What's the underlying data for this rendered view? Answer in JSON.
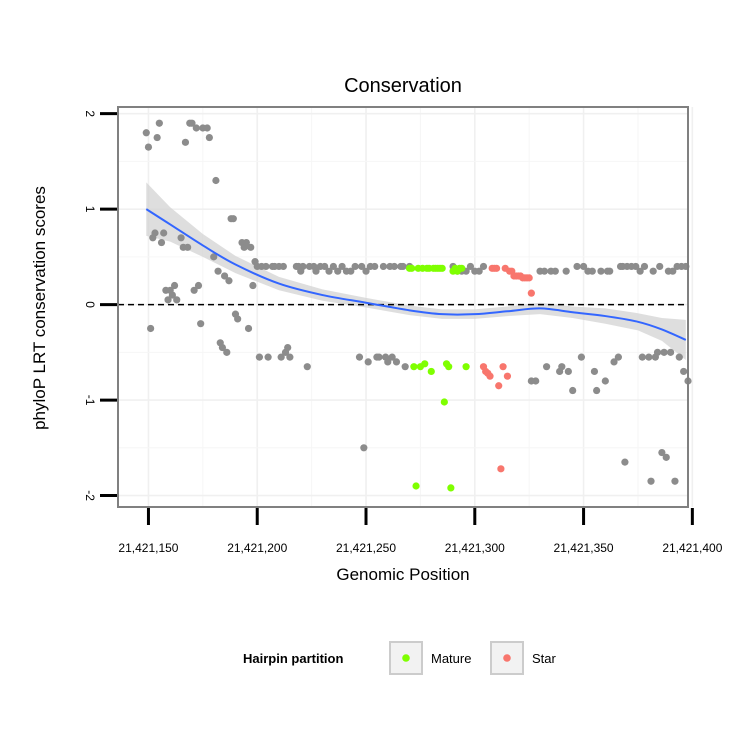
{
  "chart_data": {
    "type": "scatter",
    "title": "Conservation",
    "xlabel": "Genomic Position",
    "ylabel": "phyloP LRT conservation scores",
    "xlim": [
      21421136,
      21421398
    ],
    "ylim": [
      -2.12,
      2.07
    ],
    "x_ticks": [
      21421150,
      21421200,
      21421250,
      21421300,
      21421350,
      21421400
    ],
    "x_tick_labels": [
      "21,421,150",
      "21,421,200",
      "21,421,250",
      "21,421,300",
      "21,421,350",
      "21,421,400"
    ],
    "y_ticks": [
      -2,
      -1,
      0,
      1,
      2
    ],
    "y_tick_labels": [
      "-2",
      "-1",
      "0",
      "1",
      "2"
    ],
    "reference_line": {
      "y": 0,
      "style": "dashed"
    },
    "legend": {
      "title": "Hairpin partition",
      "position": "bottom",
      "entries": [
        {
          "label": "Mature",
          "color": "#7fff00"
        },
        {
          "label": "Star",
          "color": "#f8766d"
        }
      ]
    },
    "colors": {
      "other": "#8c8c8c",
      "Mature": "#7fff00",
      "Star": "#f8766d",
      "smooth": "#3366ff",
      "band": "#d3d3d3"
    },
    "series": [
      {
        "name": "Other",
        "points": [
          [
            21421149,
            1.8
          ],
          [
            21421150,
            1.65
          ],
          [
            21421151,
            -0.25
          ],
          [
            21421152,
            0.7
          ],
          [
            21421153,
            0.75
          ],
          [
            21421154,
            1.75
          ],
          [
            21421155,
            1.9
          ],
          [
            21421156,
            0.65
          ],
          [
            21421157,
            0.75
          ],
          [
            21421158,
            0.15
          ],
          [
            21421159,
            0.05
          ],
          [
            21421160,
            0.15
          ],
          [
            21421161,
            0.1
          ],
          [
            21421162,
            0.2
          ],
          [
            21421163,
            0.05
          ],
          [
            21421165,
            0.7
          ],
          [
            21421166,
            0.6
          ],
          [
            21421167,
            1.7
          ],
          [
            21421168,
            0.6
          ],
          [
            21421169,
            1.9
          ],
          [
            21421170,
            1.9
          ],
          [
            21421171,
            0.15
          ],
          [
            21421172,
            1.85
          ],
          [
            21421173,
            0.2
          ],
          [
            21421174,
            -0.2
          ],
          [
            21421175,
            1.85
          ],
          [
            21421177,
            1.85
          ],
          [
            21421178,
            1.75
          ],
          [
            21421180,
            0.5
          ],
          [
            21421181,
            1.3
          ],
          [
            21421182,
            0.35
          ],
          [
            21421183,
            -0.4
          ],
          [
            21421184,
            -0.45
          ],
          [
            21421185,
            0.3
          ],
          [
            21421186,
            -0.5
          ],
          [
            21421187,
            0.25
          ],
          [
            21421188,
            0.9
          ],
          [
            21421189,
            0.9
          ],
          [
            21421190,
            -0.1
          ],
          [
            21421191,
            -0.15
          ],
          [
            21421193,
            0.65
          ],
          [
            21421194,
            0.6
          ],
          [
            21421195,
            0.65
          ],
          [
            21421196,
            -0.25
          ],
          [
            21421197,
            0.6
          ],
          [
            21421198,
            0.2
          ],
          [
            21421199,
            0.45
          ],
          [
            21421200,
            0.4
          ],
          [
            21421201,
            -0.55
          ],
          [
            21421202,
            0.4
          ],
          [
            21421204,
            0.4
          ],
          [
            21421205,
            -0.55
          ],
          [
            21421207,
            0.4
          ],
          [
            21421208,
            0.4
          ],
          [
            21421210,
            0.4
          ],
          [
            21421211,
            -0.55
          ],
          [
            21421212,
            0.4
          ],
          [
            21421213,
            -0.5
          ],
          [
            21421214,
            -0.45
          ],
          [
            21421215,
            -0.55
          ],
          [
            21421218,
            0.4
          ],
          [
            21421219,
            0.4
          ],
          [
            21421220,
            0.35
          ],
          [
            21421221,
            0.4
          ],
          [
            21421223,
            -0.65
          ],
          [
            21421224,
            0.4
          ],
          [
            21421226,
            0.4
          ],
          [
            21421227,
            0.35
          ],
          [
            21421229,
            0.4
          ],
          [
            21421231,
            0.4
          ],
          [
            21421233,
            0.35
          ],
          [
            21421235,
            0.4
          ],
          [
            21421237,
            0.35
          ],
          [
            21421239,
            0.4
          ],
          [
            21421241,
            0.35
          ],
          [
            21421243,
            0.35
          ],
          [
            21421245,
            0.4
          ],
          [
            21421247,
            -0.55
          ],
          [
            21421248,
            0.4
          ],
          [
            21421249,
            -1.5
          ],
          [
            21421250,
            0.35
          ],
          [
            21421251,
            -0.6
          ],
          [
            21421252,
            0.4
          ],
          [
            21421254,
            0.4
          ],
          [
            21421255,
            -0.55
          ],
          [
            21421256,
            -0.55
          ],
          [
            21421258,
            0.4
          ],
          [
            21421259,
            -0.55
          ],
          [
            21421260,
            -0.6
          ],
          [
            21421261,
            0.4
          ],
          [
            21421262,
            -0.55
          ],
          [
            21421263,
            0.4
          ],
          [
            21421264,
            -0.6
          ],
          [
            21421266,
            0.4
          ],
          [
            21421267,
            0.4
          ],
          [
            21421268,
            -0.65
          ],
          [
            21421270,
            0.4
          ],
          [
            21421290,
            0.4
          ],
          [
            21421292,
            0.35
          ],
          [
            21421294,
            0.35
          ],
          [
            21421296,
            0.35
          ],
          [
            21421298,
            0.4
          ],
          [
            21421300,
            0.35
          ],
          [
            21421302,
            0.35
          ],
          [
            21421304,
            0.4
          ],
          [
            21421326,
            -0.8
          ],
          [
            21421328,
            -0.8
          ],
          [
            21421330,
            0.35
          ],
          [
            21421332,
            0.35
          ],
          [
            21421333,
            -0.65
          ],
          [
            21421335,
            0.35
          ],
          [
            21421337,
            0.35
          ],
          [
            21421339,
            -0.7
          ],
          [
            21421340,
            -0.65
          ],
          [
            21421342,
            0.35
          ],
          [
            21421343,
            -0.7
          ],
          [
            21421345,
            -0.9
          ],
          [
            21421347,
            0.4
          ],
          [
            21421349,
            -0.55
          ],
          [
            21421350,
            0.4
          ],
          [
            21421352,
            0.35
          ],
          [
            21421354,
            0.35
          ],
          [
            21421355,
            -0.7
          ],
          [
            21421356,
            -0.9
          ],
          [
            21421358,
            0.35
          ],
          [
            21421360,
            -0.8
          ],
          [
            21421361,
            0.35
          ],
          [
            21421362,
            0.35
          ],
          [
            21421364,
            -0.6
          ],
          [
            21421366,
            -0.55
          ],
          [
            21421367,
            0.4
          ],
          [
            21421368,
            0.4
          ],
          [
            21421369,
            -1.65
          ],
          [
            21421370,
            0.4
          ],
          [
            21421372,
            0.4
          ],
          [
            21421374,
            0.4
          ],
          [
            21421376,
            0.35
          ],
          [
            21421377,
            -0.55
          ],
          [
            21421378,
            0.4
          ],
          [
            21421380,
            -0.55
          ],
          [
            21421381,
            -1.85
          ],
          [
            21421382,
            0.35
          ],
          [
            21421383,
            -0.55
          ],
          [
            21421384,
            -0.5
          ],
          [
            21421385,
            0.4
          ],
          [
            21421386,
            -1.55
          ],
          [
            21421387,
            -0.5
          ],
          [
            21421388,
            -1.6
          ],
          [
            21421389,
            0.35
          ],
          [
            21421390,
            -0.5
          ],
          [
            21421391,
            0.35
          ],
          [
            21421392,
            -1.85
          ],
          [
            21421393,
            0.4
          ],
          [
            21421394,
            -0.55
          ],
          [
            21421395,
            0.4
          ],
          [
            21421396,
            -0.7
          ],
          [
            21421397,
            0.4
          ],
          [
            21421398,
            -0.8
          ]
        ]
      },
      {
        "name": "Mature",
        "points": [
          [
            21421270,
            0.38
          ],
          [
            21421271,
            0.38
          ],
          [
            21421272,
            -0.65
          ],
          [
            21421273,
            -1.9
          ],
          [
            21421274,
            0.38
          ],
          [
            21421275,
            -0.65
          ],
          [
            21421276,
            0.38
          ],
          [
            21421277,
            -0.62
          ],
          [
            21421278,
            0.38
          ],
          [
            21421279,
            0.38
          ],
          [
            21421280,
            -0.7
          ],
          [
            21421281,
            0.38
          ],
          [
            21421282,
            0.38
          ],
          [
            21421283,
            0.38
          ],
          [
            21421284,
            0.38
          ],
          [
            21421285,
            0.38
          ],
          [
            21421286,
            -1.02
          ],
          [
            21421287,
            -0.62
          ],
          [
            21421288,
            -0.65
          ],
          [
            21421289,
            -1.92
          ],
          [
            21421290,
            0.35
          ],
          [
            21421291,
            0.38
          ],
          [
            21421292,
            0.35
          ],
          [
            21421293,
            0.38
          ],
          [
            21421294,
            0.38
          ],
          [
            21421296,
            -0.65
          ]
        ]
      },
      {
        "name": "Star",
        "points": [
          [
            21421304,
            -0.65
          ],
          [
            21421305,
            -0.7
          ],
          [
            21421306,
            -0.72
          ],
          [
            21421307,
            -0.75
          ],
          [
            21421308,
            0.38
          ],
          [
            21421309,
            0.38
          ],
          [
            21421310,
            0.38
          ],
          [
            21421311,
            -0.85
          ],
          [
            21421312,
            -1.72
          ],
          [
            21421313,
            -0.65
          ],
          [
            21421314,
            0.38
          ],
          [
            21421315,
            -0.75
          ],
          [
            21421316,
            0.35
          ],
          [
            21421317,
            0.35
          ],
          [
            21421318,
            0.3
          ],
          [
            21421319,
            0.3
          ],
          [
            21421320,
            0.3
          ],
          [
            21421321,
            0.3
          ],
          [
            21421322,
            0.28
          ],
          [
            21421323,
            0.28
          ],
          [
            21421324,
            0.28
          ],
          [
            21421325,
            0.28
          ],
          [
            21421326,
            0.12
          ]
        ]
      }
    ],
    "smooth": {
      "x": [
        21421149,
        21421160,
        21421175,
        21421190,
        21421210,
        21421230,
        21421250,
        21421270,
        21421285,
        21421300,
        21421315,
        21421330,
        21421345,
        21421360,
        21421375,
        21421386,
        21421397
      ],
      "y": [
        1.0,
        0.84,
        0.62,
        0.42,
        0.22,
        0.1,
        0.02,
        -0.06,
        -0.1,
        -0.1,
        -0.07,
        -0.04,
        -0.08,
        -0.12,
        -0.18,
        -0.26,
        -0.37
      ],
      "lower": [
        0.72,
        0.66,
        0.5,
        0.33,
        0.15,
        0.04,
        -0.03,
        -0.11,
        -0.15,
        -0.15,
        -0.12,
        -0.1,
        -0.14,
        -0.2,
        -0.27,
        -0.38,
        -0.58
      ],
      "upper": [
        1.28,
        1.02,
        0.74,
        0.51,
        0.29,
        0.16,
        0.07,
        -0.01,
        -0.05,
        -0.05,
        -0.02,
        0.02,
        -0.02,
        -0.04,
        -0.09,
        -0.14,
        -0.16
      ]
    }
  }
}
